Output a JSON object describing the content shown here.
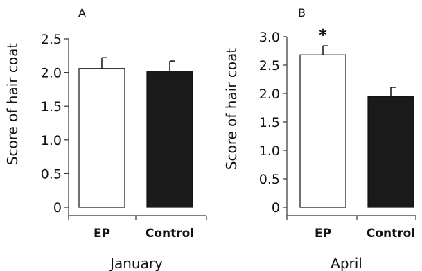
{
  "chart_data": [
    {
      "type": "bar",
      "panel": "A",
      "categories": [
        "EP",
        "Control"
      ],
      "values": [
        2.06,
        2.01
      ],
      "errors": [
        0.16,
        0.16
      ],
      "colors": [
        "#ffffff",
        "#1a1a1a"
      ],
      "ylabel": "Score of hair coat",
      "xlabel": "January",
      "ylim": [
        0,
        2.5
      ],
      "yticks": [
        "0",
        "0.5",
        "1.0",
        "1.5",
        "2.0",
        "2.5"
      ],
      "grid": false
    },
    {
      "type": "bar",
      "panel": "B",
      "categories": [
        "EP",
        "Control"
      ],
      "values": [
        2.68,
        1.95
      ],
      "errors": [
        0.16,
        0.16
      ],
      "colors": [
        "#ffffff",
        "#1a1a1a"
      ],
      "ylabel": "Score of hair coat",
      "xlabel": "April",
      "ylim": [
        0,
        3.0
      ],
      "yticks": [
        "0",
        "0.5",
        "1.0",
        "1.5",
        "2.0",
        "2.5",
        "3.0"
      ],
      "annotation": "*",
      "grid": false
    }
  ]
}
